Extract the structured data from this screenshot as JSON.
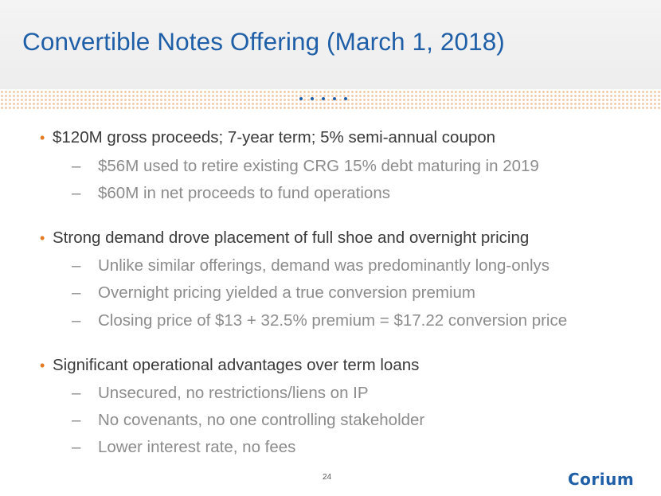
{
  "slide": {
    "title": "Convertible Notes Offering (March 1, 2018)",
    "page_number": "24",
    "logo_text": "Corium",
    "colors": {
      "title": "#1f5fa8",
      "bullet_marker": "#e87722",
      "bullet_text": "#3a3a3a",
      "sub_text": "#8c8c8c",
      "dot_pattern": "#f2c9a6",
      "logo": "#1f5fa8"
    }
  },
  "bullets": [
    {
      "text": "$120M gross proceeds; 7-year term; 5% semi-annual coupon",
      "subs": [
        "$56M used to retire existing CRG 15% debt maturing in 2019",
        "$60M in net proceeds to fund operations"
      ]
    },
    {
      "text": "Strong demand drove placement of full shoe and overnight pricing",
      "subs": [
        "Unlike similar offerings, demand was predominantly long-onlys",
        "Overnight pricing yielded a true conversion premium",
        "Closing price of $13 + 32.5% premium = $17.22 conversion price"
      ]
    },
    {
      "text": "Significant operational advantages over term loans",
      "subs": [
        "Unsecured, no restrictions/liens on IP",
        "No covenants, no one controlling stakeholder",
        "Lower interest rate, no fees"
      ]
    }
  ]
}
